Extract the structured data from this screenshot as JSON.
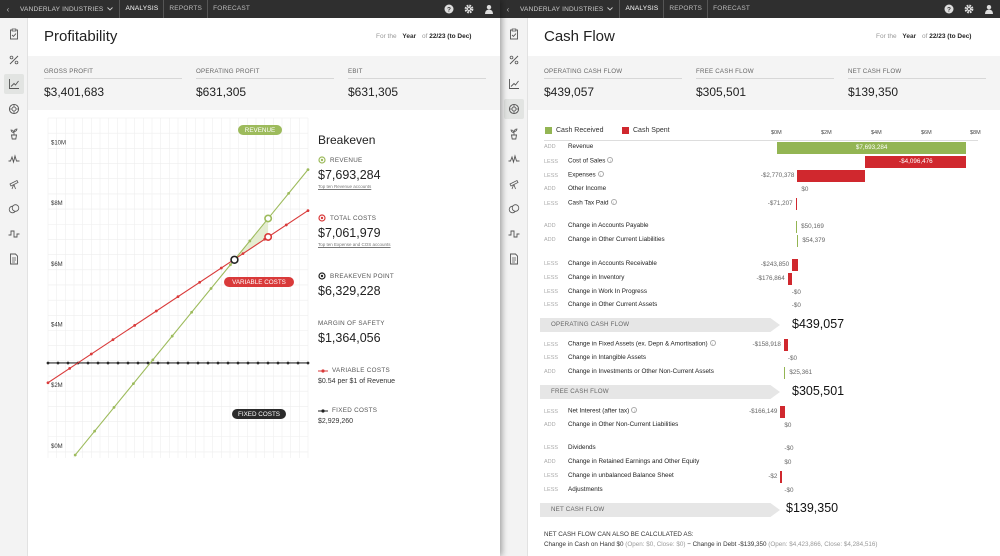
{
  "left": {
    "org": "VANDERLAY INDUSTRIES",
    "nav": [
      "ANALYSIS",
      "REPORTS",
      "FORECAST"
    ],
    "title": "Profitability",
    "period": {
      "prefix": "For the",
      "unit": "Year",
      "of": "of",
      "value": "22/23 (to Dec)"
    },
    "kpis": [
      {
        "label": "GROSS PROFIT",
        "value": "$3,401,683"
      },
      {
        "label": "OPERATING PROFIT",
        "value": "$631,305"
      },
      {
        "label": "EBIT",
        "value": "$631,305"
      }
    ],
    "breakeven": {
      "title": "Breakeven",
      "revenue_label": "REVENUE",
      "revenue_value": "$7,693,284",
      "revenue_link": "Top ten Revenue accounts",
      "total_costs_label": "TOTAL COSTS",
      "total_costs_value": "$7,061,979",
      "total_costs_link": "Top ten Expense and COS accounts",
      "bep_label": "BREAKEVEN POINT",
      "bep_value": "$6,329,228",
      "mos_label": "MARGIN OF SAFETY",
      "mos_value": "$1,364,056",
      "var_label": "VARIABLE COSTS",
      "var_value": "$0.54 per $1 of Revenue",
      "fixed_label": "FIXED COSTS",
      "fixed_value": "$2,929,260"
    },
    "colors": {
      "revenue": "#9dbb5c",
      "costs": "#d93a3a",
      "fixed": "#2b2b2b",
      "accent": "#8cb04a"
    }
  },
  "right": {
    "org": "VANDERLAY INDUSTRIES",
    "nav": [
      "ANALYSIS",
      "REPORTS",
      "FORECAST"
    ],
    "title": "Cash Flow",
    "period": {
      "prefix": "For the",
      "unit": "Year",
      "of": "of",
      "value": "22/23 (to Dec)"
    },
    "kpis": [
      {
        "label": "OPERATING CASH FLOW",
        "value": "$439,057"
      },
      {
        "label": "FREE CASH FLOW",
        "value": "$305,501"
      },
      {
        "label": "NET CASH FLOW",
        "value": "$139,350"
      }
    ],
    "legend": {
      "received": "Cash Received",
      "spent": "Cash Spent"
    },
    "scale": [
      "$0M",
      "$2M",
      "$4M",
      "$6M",
      "$8M"
    ],
    "rows": [
      {
        "kind": "ADD",
        "label": "Revenue",
        "value": "$7,693,284"
      },
      {
        "kind": "LESS",
        "label": "Cost of Sales",
        "value": "-$4,096,476"
      },
      {
        "kind": "LESS",
        "label": "Expenses",
        "value": "-$2,770,378"
      },
      {
        "kind": "ADD",
        "label": "Other Income",
        "value": "$0"
      },
      {
        "kind": "LESS",
        "label": "Cash Tax Paid",
        "value": "-$71,207"
      },
      {
        "kind": "ADD",
        "label": "Change in Accounts Payable",
        "value": "$50,169"
      },
      {
        "kind": "ADD",
        "label": "Change in Other Current Liabilities",
        "value": "$54,379"
      },
      {
        "kind": "LESS",
        "label": "Change in Accounts Receivable",
        "value": "-$243,850"
      },
      {
        "kind": "LESS",
        "label": "Change in Inventory",
        "value": "-$176,864"
      },
      {
        "kind": "LESS",
        "label": "Change in Work In Progress",
        "value": "-$0"
      },
      {
        "kind": "LESS",
        "label": "Change in Other Current Assets",
        "value": "-$0"
      },
      {
        "kind": "LESS",
        "label": "Change in Fixed Assets (ex. Depn & Amortisation)",
        "value": "-$158,918"
      },
      {
        "kind": "LESS",
        "label": "Change in Intangible Assets",
        "value": "-$0"
      },
      {
        "kind": "ADD",
        "label": "Change in Investments or Other Non-Current Assets",
        "value": "$25,361"
      },
      {
        "kind": "LESS",
        "label": "Net Interest (after tax)",
        "value": "-$166,149"
      },
      {
        "kind": "ADD",
        "label": "Change in Other Non-Current Liabilities",
        "value": "$0"
      },
      {
        "kind": "LESS",
        "label": "Dividends",
        "value": "-$0"
      },
      {
        "kind": "ADD",
        "label": "Change in Retained Earnings and Other Equity",
        "value": "$0"
      },
      {
        "kind": "LESS",
        "label": "Change in unbalanced Balance Sheet",
        "value": "-$2"
      },
      {
        "kind": "LESS",
        "label": "Adjustments",
        "value": "-$0"
      }
    ],
    "subtotals": [
      {
        "label": "OPERATING CASH FLOW",
        "value": "$439,057"
      },
      {
        "label": "FREE CASH FLOW",
        "value": "$305,501"
      },
      {
        "label": "NET CASH FLOW",
        "value": "$139,350"
      }
    ],
    "footer": {
      "heading": "NET CASH FLOW CAN ALSO BE CALCULATED AS:",
      "line_a": "Change in Cash on Hand $0",
      "line_a_detail": "(Open: $0, Close: $0)",
      "op": "−",
      "line_b": "Change in Debt -$139,350",
      "line_b_detail": "(Open: $4,423,866, Close: $4,284,516)"
    },
    "colors": {
      "received": "#93b553",
      "spent": "#d0282e"
    }
  },
  "chart_data": {
    "type": "line",
    "x_unit": "Revenue ($M)",
    "y_tick_labels": [
      "$0M",
      "$2M",
      "$4M",
      "$6M",
      "$8M",
      "$10M"
    ],
    "ylim": [
      -0.2,
      11
    ],
    "xlim": [
      -1.2,
      9.3
    ],
    "grid": true,
    "series": [
      {
        "name": "REVENUE",
        "x": [
          -0.1,
          9.3
        ],
        "y": [
          -0.1,
          9.3
        ]
      },
      {
        "name": "TOTAL COSTS",
        "x": [
          -1.2,
          9.3
        ],
        "y": [
          2.28,
          7.95
        ]
      },
      {
        "name": "FIXED COSTS",
        "x": [
          -1.2,
          9.3
        ],
        "y": [
          2.93,
          2.93
        ]
      }
    ],
    "breakeven_point": {
      "x": 6.33,
      "y": 6.33
    },
    "actual": {
      "revenue": 7.69,
      "total_costs": 7.06
    },
    "tags": {
      "revenue": "REVENUE",
      "variable": "VARIABLE COSTS",
      "fixed": "FIXED COSTS"
    }
  }
}
